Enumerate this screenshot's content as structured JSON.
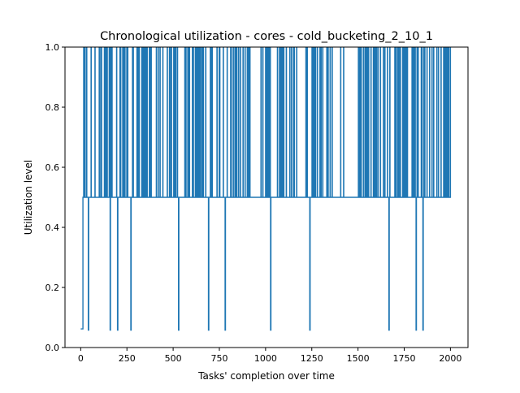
{
  "chart_data": {
    "type": "line",
    "title": "Chronological utilization - cores - cold_bucketing_2_10_1",
    "xlabel": "Tasks' completion over time",
    "ylabel": "Utilization level",
    "xlim": [
      -85,
      2095
    ],
    "ylim": [
      0.0,
      1.0
    ],
    "xticks": [
      0,
      250,
      500,
      750,
      1000,
      1250,
      1500,
      1750,
      2000
    ],
    "xtick_labels": [
      "0",
      "250",
      "500",
      "750",
      "1000",
      "1250",
      "1500",
      "1750",
      "2000"
    ],
    "yticks": [
      0.0,
      0.2,
      0.4,
      0.6,
      0.8,
      1.0
    ],
    "ytick_labels": [
      "0.0",
      "0.2",
      "0.4",
      "0.6",
      "0.8",
      "1.0"
    ],
    "grid": false,
    "series_color": "#1f77b4",
    "baseline_level": 0.5,
    "high_level": 1.0,
    "start": {
      "x_range": [
        0,
        12
      ],
      "y": 0.062
    },
    "end_x": 2000,
    "low_dips": [
      {
        "x": 42,
        "y": 0.058
      },
      {
        "x": 160,
        "y": 0.058
      },
      {
        "x": 200,
        "y": 0.058
      },
      {
        "x": 272,
        "y": 0.058
      },
      {
        "x": 530,
        "y": 0.058
      },
      {
        "x": 692,
        "y": 0.058
      },
      {
        "x": 782,
        "y": 0.058
      },
      {
        "x": 1028,
        "y": 0.058
      },
      {
        "x": 1240,
        "y": 0.058
      },
      {
        "x": 1668,
        "y": 0.058
      },
      {
        "x": 1815,
        "y": 0.058
      },
      {
        "x": 1852,
        "y": 0.058
      }
    ],
    "peaks_note": "dense spikes between 0.5 and 1.0 across x = 12 to 2000"
  }
}
